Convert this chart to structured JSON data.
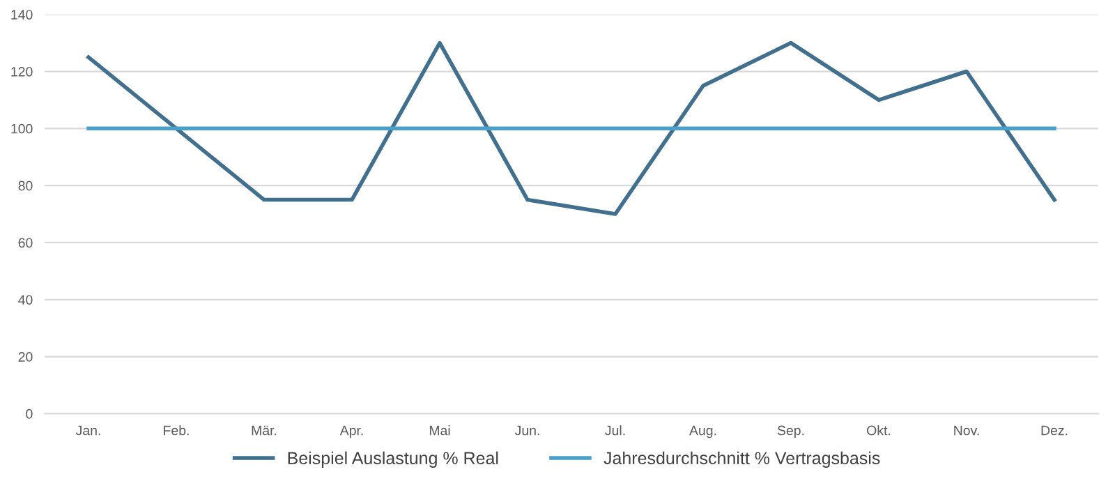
{
  "chart_data": {
    "type": "line",
    "categories": [
      "Jan.",
      "Feb.",
      "Mär.",
      "Apr.",
      "Mai",
      "Jun.",
      "Jul.",
      "Aug.",
      "Sep.",
      "Okt.",
      "Nov.",
      "Dez."
    ],
    "series": [
      {
        "name": "Beispiel Auslastung % Real",
        "color": "#41708f",
        "values": [
          125,
          100,
          75,
          75,
          130,
          75,
          70,
          115,
          130,
          110,
          120,
          75
        ]
      },
      {
        "name": "Jahresdurchschnitt % Vertragsbasis",
        "color": "#4a9fcb",
        "values": [
          100,
          100,
          100,
          100,
          100,
          100,
          100,
          100,
          100,
          100,
          100,
          100
        ]
      }
    ],
    "ylim": [
      0,
      140
    ],
    "yticks": [
      0,
      20,
      40,
      60,
      80,
      100,
      120,
      140
    ],
    "grid": "y",
    "legend": "bottom",
    "marker": "none",
    "line_style": "solid"
  }
}
